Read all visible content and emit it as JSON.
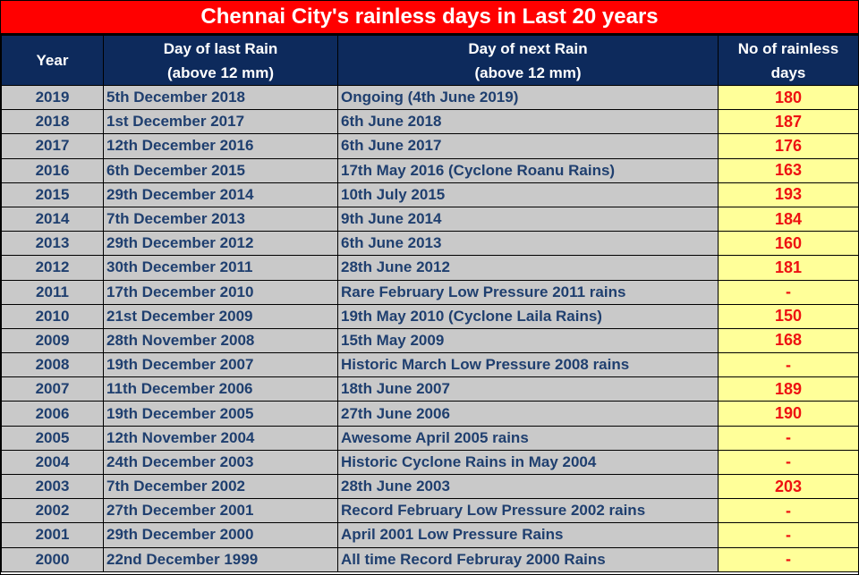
{
  "title": "Chennai City's rainless days in Last 20 years",
  "headers": {
    "year": "Year",
    "last_rain_line1": "Day of last Rain",
    "last_rain_line2": "(above 12 mm)",
    "next_rain_line1": "Day of next Rain",
    "next_rain_line2": "(above 12 mm)",
    "days_line1": "No of rainless",
    "days_line2": "days"
  },
  "colors": {
    "title_background": "#ff0000",
    "header_background": "#0d2a5c",
    "row_background": "#c9c9c9",
    "row_text": "#1f3f6f",
    "days_background": "#ffff99",
    "days_text": "#ee1111"
  },
  "rows": [
    {
      "year": "2019",
      "last_rain": "5th December 2018",
      "next_rain": "Ongoing (4th June 2019)",
      "rainless_days": "180"
    },
    {
      "year": "2018",
      "last_rain": "1st December 2017",
      "next_rain": "6th June 2018",
      "rainless_days": "187"
    },
    {
      "year": "2017",
      "last_rain": "12th December 2016",
      "next_rain": "6th June 2017",
      "rainless_days": "176"
    },
    {
      "year": "2016",
      "last_rain": "6th December 2015",
      "next_rain": "17th May 2016 (Cyclone Roanu Rains)",
      "rainless_days": "163"
    },
    {
      "year": "2015",
      "last_rain": "29th December 2014",
      "next_rain": "10th July 2015",
      "rainless_days": "193"
    },
    {
      "year": "2014",
      "last_rain": "7th December 2013",
      "next_rain": "9th June 2014",
      "rainless_days": "184"
    },
    {
      "year": "2013",
      "last_rain": "29th December 2012",
      "next_rain": "6th June 2013",
      "rainless_days": "160"
    },
    {
      "year": "2012",
      "last_rain": "30th December 2011",
      "next_rain": "28th June 2012",
      "rainless_days": "181"
    },
    {
      "year": "2011",
      "last_rain": "17th December 2010",
      "next_rain": "Rare February Low Pressure 2011 rains",
      "rainless_days": "-"
    },
    {
      "year": "2010",
      "last_rain": "21st December 2009",
      "next_rain": "19th May 2010 (Cyclone Laila Rains)",
      "rainless_days": "150"
    },
    {
      "year": "2009",
      "last_rain": "28th November 2008",
      "next_rain": "15th May 2009",
      "rainless_days": "168"
    },
    {
      "year": "2008",
      "last_rain": "19th December 2007",
      "next_rain": "Historic March Low Pressure 2008 rains",
      "rainless_days": "-"
    },
    {
      "year": "2007",
      "last_rain": "11th December 2006",
      "next_rain": "18th June 2007",
      "rainless_days": "189"
    },
    {
      "year": "2006",
      "last_rain": "19th December 2005",
      "next_rain": "27th June 2006",
      "rainless_days": "190"
    },
    {
      "year": "2005",
      "last_rain": "12th November 2004",
      "next_rain": "Awesome April 2005 rains",
      "rainless_days": "-"
    },
    {
      "year": "2004",
      "last_rain": "24th December 2003",
      "next_rain": "Historic Cyclone Rains in May 2004",
      "rainless_days": "-"
    },
    {
      "year": "2003",
      "last_rain": "7th December 2002",
      "next_rain": "28th June 2003",
      "rainless_days": "203"
    },
    {
      "year": "2002",
      "last_rain": "27th December 2001",
      "next_rain": "Record February Low Pressure 2002 rains",
      "rainless_days": "-"
    },
    {
      "year": "2001",
      "last_rain": "29th December 2000",
      "next_rain": "April 2001 Low Pressure Rains",
      "rainless_days": "-"
    },
    {
      "year": "2000",
      "last_rain": "22nd December 1999",
      "next_rain": "All time Record Februray 2000 Rains",
      "rainless_days": "-"
    }
  ]
}
